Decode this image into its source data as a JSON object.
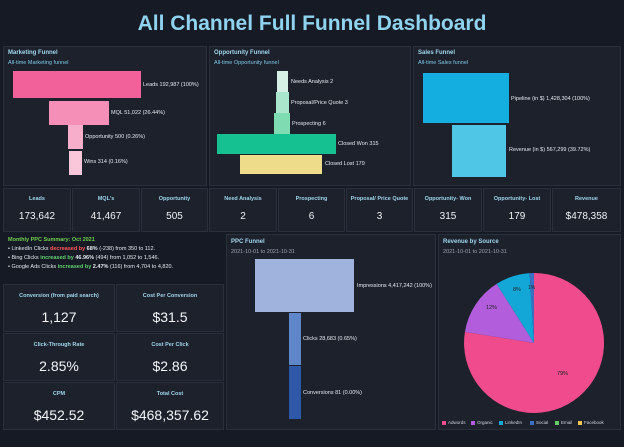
{
  "title": "All Channel Full Funnel Dashboard",
  "marketing": {
    "title": "Marketing Funnel",
    "subtitle": "All-time Marketing funnel",
    "labels": [
      "Leads 192,987 (100%)",
      "MQL 51,022 (26.44%)",
      "Opportunity 500 (0.26%)",
      "Wins 314 (0.16%)"
    ]
  },
  "opportunity": {
    "title": "Opportunity Funnel",
    "subtitle": "All-time Opportunity funnel",
    "labels": [
      "Needs Analysis 2",
      "Proposal/Price Quote 3",
      "Prospecting 6",
      "Closed Won 315",
      "Closed Lost 179"
    ]
  },
  "sales": {
    "title": "Sales Funnel",
    "subtitle": "All-time Sales funnel",
    "labels": [
      "Pipeline (in $) 1,428,304 (100%)",
      "Revenue (in $) 567,299 (39.72%)"
    ]
  },
  "kpis": [
    {
      "label": "Leads",
      "value": "173,642"
    },
    {
      "label": "MQL's",
      "value": "41,467"
    },
    {
      "label": "Opportunity",
      "value": "505"
    },
    {
      "label": "Need Analysis",
      "value": "2"
    },
    {
      "label": "Prospecting",
      "value": "6"
    },
    {
      "label": "Proposal/ Price Quote",
      "value": "3"
    },
    {
      "label": "Opportunity- Won",
      "value": "315"
    },
    {
      "label": "Opportunity- Lost",
      "value": "179"
    },
    {
      "label": "Revenue",
      "value": "$478,358"
    }
  ],
  "summary": {
    "heading": "Monthly PPC Summary:  Oct 2021",
    "l1a": "• LinkedIn Clicks ",
    "l1b": "decreased by",
    "l1c": " 68%",
    "l1d": " (-238) from 350 to 112.",
    "l2a": "• Bing Clicks ",
    "l2b": "increased by",
    "l2c": " 46.96%",
    "l2d": " (494) from 1,052 to 1,546.",
    "l3a": "• Google Ads Clicks ",
    "l3b": "increased by",
    "l3c": " 2.47%",
    "l3d": " (116) from 4,704 to 4,820."
  },
  "metrics": [
    {
      "label": "Conversion (from paid search)",
      "value": "1,127"
    },
    {
      "label": "Cost Per Conversion",
      "value": "$31.5"
    },
    {
      "label": "Click-Through Rate",
      "value": "2.85%"
    },
    {
      "label": "Cost Per Click",
      "value": "$2.86"
    },
    {
      "label": "CPM",
      "value": "$452.52"
    },
    {
      "label": "Total Cost",
      "value": "$468,357.62"
    }
  ],
  "ppc": {
    "title": "PPC Funnel",
    "daterange": "2021-10-01 to 2021-10-31",
    "labels": [
      "Impressions 4,417,242 (100%)",
      "Clicks 28,683 (0.65%)",
      "Conversions 81 (0.00%)"
    ]
  },
  "revenue_source": {
    "title": "Revenue by Source",
    "daterange": "2021-10-01 to 2021-10-31",
    "slice_labels": [
      "79%",
      "12%",
      "8%",
      "1%"
    ],
    "legend": [
      "Adwords",
      "Organic",
      "LinkedIn",
      "Social",
      "Email",
      "Facebook"
    ],
    "colors": [
      "#f04b8c",
      "#b25ddb",
      "#12a7d6",
      "#3a6fc2",
      "#66cc66",
      "#f2c94c"
    ]
  },
  "colors": {
    "marketing": "#f2619a",
    "opportunity": [
      "#d6f0e6",
      "#a9e6cc",
      "#7fdcb2",
      "#15c190",
      "#eedc8a"
    ],
    "sales": [
      "#14aee0",
      "#4fc6e6"
    ],
    "ppc": [
      "#9fb3dc",
      "#5f86c9",
      "#2f58a8"
    ]
  }
}
